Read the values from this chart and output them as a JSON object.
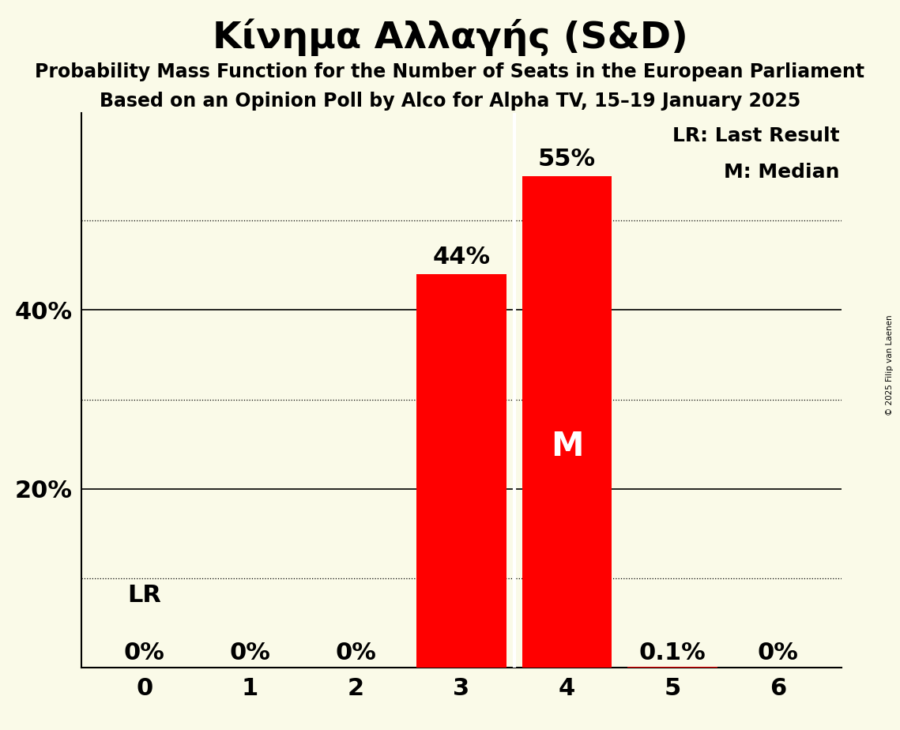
{
  "title": "Κίνημα Αλλαγής (S&D)",
  "subtitle1": "Probability Mass Function for the Number of Seats in the European Parliament",
  "subtitle2": "Based on an Opinion Poll by Alco for Alpha TV, 15–19 January 2025",
  "copyright": "© 2025 Filip van Laenen",
  "categories": [
    0,
    1,
    2,
    3,
    4,
    5,
    6
  ],
  "values": [
    0.0,
    0.0,
    0.0,
    0.44,
    0.55,
    0.001,
    0.0
  ],
  "bar_color": "#FF0000",
  "background_color": "#FAFAE8",
  "label_texts": [
    "0%",
    "0%",
    "0%",
    "44%",
    "55%",
    "0.1%",
    "0%"
  ],
  "lr_seat": 0,
  "median_seat": 4,
  "ylim": [
    0,
    0.62
  ],
  "legend_lr": "LR: Last Result",
  "legend_m": "M: Median",
  "lr_label": "LR",
  "m_label": "M",
  "title_fontsize": 34,
  "subtitle_fontsize": 17,
  "tick_fontsize": 22,
  "bar_label_fontsize": 22,
  "legend_fontsize": 18,
  "solid_lines": [
    0.2,
    0.4
  ],
  "dotted_lines": [
    0.1,
    0.3,
    0.5
  ],
  "ytick_positions": [
    0.2,
    0.4
  ],
  "ytick_labels": [
    "20%",
    "40%"
  ]
}
